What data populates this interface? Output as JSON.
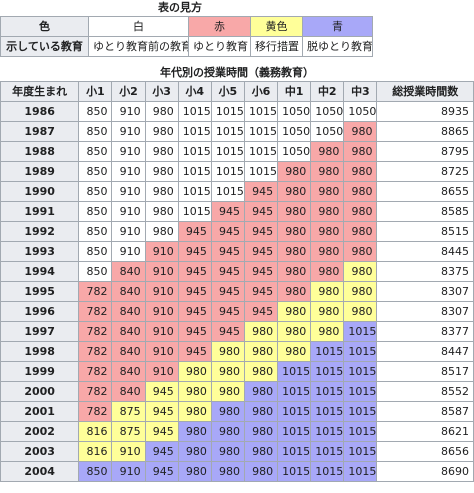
{
  "legend": {
    "caption": "表の見方",
    "rows": [
      [
        "色",
        "白",
        "赤",
        "黄色",
        "青"
      ],
      [
        "示している教育",
        "ゆとり教育前の教育",
        "ゆとり教育",
        "移行措置",
        "脱ゆとり教育"
      ]
    ],
    "colors": [
      "#ffffff",
      "#f8a8a8",
      "#ffff99",
      "#a8a8f8"
    ]
  },
  "table": {
    "caption": "年代別の授業時間（義務教育）",
    "header": [
      "年度生まれ",
      "小1",
      "小2",
      "小3",
      "小4",
      "小5",
      "小6",
      "中1",
      "中2",
      "中3",
      "総授業時間数"
    ],
    "rows": [
      {
        "year": 1986,
        "cells": [
          850,
          910,
          980,
          1015,
          1015,
          1015,
          1050,
          1050,
          1050
        ],
        "total": 8935,
        "colors": [
          "#ffffff",
          "#ffffff",
          "#ffffff",
          "#ffffff",
          "#ffffff",
          "#ffffff",
          "#ffffff",
          "#ffffff",
          "#ffffff"
        ]
      },
      {
        "year": 1987,
        "cells": [
          850,
          910,
          980,
          1015,
          1015,
          1015,
          1050,
          1050,
          980
        ],
        "total": 8865,
        "colors": [
          "#ffffff",
          "#ffffff",
          "#ffffff",
          "#ffffff",
          "#ffffff",
          "#ffffff",
          "#ffffff",
          "#ffffff",
          "#f8a8a8"
        ]
      },
      {
        "year": 1988,
        "cells": [
          850,
          910,
          980,
          1015,
          1015,
          1015,
          1050,
          980,
          980
        ],
        "total": 8795,
        "colors": [
          "#ffffff",
          "#ffffff",
          "#ffffff",
          "#ffffff",
          "#ffffff",
          "#ffffff",
          "#ffffff",
          "#f8a8a8",
          "#f8a8a8"
        ]
      },
      {
        "year": 1989,
        "cells": [
          850,
          910,
          980,
          1015,
          1015,
          1015,
          980,
          980,
          980
        ],
        "total": 8725,
        "colors": [
          "#ffffff",
          "#ffffff",
          "#ffffff",
          "#ffffff",
          "#ffffff",
          "#ffffff",
          "#f8a8a8",
          "#f8a8a8",
          "#f8a8a8"
        ]
      },
      {
        "year": 1990,
        "cells": [
          850,
          910,
          980,
          1015,
          1015,
          945,
          980,
          980,
          980
        ],
        "total": 8655,
        "colors": [
          "#ffffff",
          "#ffffff",
          "#ffffff",
          "#ffffff",
          "#ffffff",
          "#f8a8a8",
          "#f8a8a8",
          "#f8a8a8",
          "#f8a8a8"
        ]
      },
      {
        "year": 1991,
        "cells": [
          850,
          910,
          980,
          1015,
          945,
          945,
          980,
          980,
          980
        ],
        "total": 8585,
        "colors": [
          "#ffffff",
          "#ffffff",
          "#ffffff",
          "#ffffff",
          "#f8a8a8",
          "#f8a8a8",
          "#f8a8a8",
          "#f8a8a8",
          "#f8a8a8"
        ]
      },
      {
        "year": 1992,
        "cells": [
          850,
          910,
          980,
          945,
          945,
          945,
          980,
          980,
          980
        ],
        "total": 8515,
        "colors": [
          "#ffffff",
          "#ffffff",
          "#ffffff",
          "#f8a8a8",
          "#f8a8a8",
          "#f8a8a8",
          "#f8a8a8",
          "#f8a8a8",
          "#f8a8a8"
        ]
      },
      {
        "year": 1993,
        "cells": [
          850,
          910,
          910,
          945,
          945,
          945,
          980,
          980,
          980
        ],
        "total": 8445,
        "colors": [
          "#ffffff",
          "#ffffff",
          "#f8a8a8",
          "#f8a8a8",
          "#f8a8a8",
          "#f8a8a8",
          "#f8a8a8",
          "#f8a8a8",
          "#f8a8a8"
        ]
      },
      {
        "year": 1994,
        "cells": [
          850,
          840,
          910,
          945,
          945,
          945,
          980,
          980,
          980
        ],
        "total": 8375,
        "colors": [
          "#ffffff",
          "#f8a8a8",
          "#f8a8a8",
          "#f8a8a8",
          "#f8a8a8",
          "#f8a8a8",
          "#f8a8a8",
          "#f8a8a8",
          "#ffff99"
        ]
      },
      {
        "year": 1995,
        "cells": [
          782,
          840,
          910,
          945,
          945,
          945,
          980,
          980,
          980
        ],
        "total": 8307,
        "colors": [
          "#f8a8a8",
          "#f8a8a8",
          "#f8a8a8",
          "#f8a8a8",
          "#f8a8a8",
          "#f8a8a8",
          "#f8a8a8",
          "#ffff99",
          "#ffff99"
        ]
      },
      {
        "year": 1996,
        "cells": [
          782,
          840,
          910,
          945,
          945,
          945,
          980,
          980,
          980
        ],
        "total": 8307,
        "colors": [
          "#f8a8a8",
          "#f8a8a8",
          "#f8a8a8",
          "#f8a8a8",
          "#f8a8a8",
          "#f8a8a8",
          "#ffff99",
          "#ffff99",
          "#ffff99"
        ]
      },
      {
        "year": 1997,
        "cells": [
          782,
          840,
          910,
          945,
          945,
          980,
          980,
          980,
          1015
        ],
        "total": 8377,
        "colors": [
          "#f8a8a8",
          "#f8a8a8",
          "#f8a8a8",
          "#f8a8a8",
          "#f8a8a8",
          "#ffff99",
          "#ffff99",
          "#ffff99",
          "#a8a8f8"
        ]
      },
      {
        "year": 1998,
        "cells": [
          782,
          840,
          910,
          945,
          980,
          980,
          980,
          1015,
          1015
        ],
        "total": 8447,
        "colors": [
          "#f8a8a8",
          "#f8a8a8",
          "#f8a8a8",
          "#f8a8a8",
          "#ffff99",
          "#ffff99",
          "#ffff99",
          "#a8a8f8",
          "#a8a8f8"
        ]
      },
      {
        "year": 1999,
        "cells": [
          782,
          840,
          910,
          980,
          980,
          980,
          1015,
          1015,
          1015
        ],
        "total": 8517,
        "colors": [
          "#f8a8a8",
          "#f8a8a8",
          "#f8a8a8",
          "#ffff99",
          "#ffff99",
          "#ffff99",
          "#a8a8f8",
          "#a8a8f8",
          "#a8a8f8"
        ]
      },
      {
        "year": 2000,
        "cells": [
          782,
          840,
          945,
          980,
          980,
          980,
          1015,
          1015,
          1015
        ],
        "total": 8552,
        "colors": [
          "#f8a8a8",
          "#f8a8a8",
          "#ffff99",
          "#ffff99",
          "#ffff99",
          "#a8a8f8",
          "#a8a8f8",
          "#a8a8f8",
          "#a8a8f8"
        ]
      },
      {
        "year": 2001,
        "cells": [
          782,
          875,
          945,
          980,
          980,
          980,
          1015,
          1015,
          1015
        ],
        "total": 8587,
        "colors": [
          "#f8a8a8",
          "#ffff99",
          "#ffff99",
          "#ffff99",
          "#a8a8f8",
          "#a8a8f8",
          "#a8a8f8",
          "#a8a8f8",
          "#a8a8f8"
        ]
      },
      {
        "year": 2002,
        "cells": [
          816,
          875,
          945,
          980,
          980,
          980,
          1015,
          1015,
          1015
        ],
        "total": 8621,
        "colors": [
          "#ffff99",
          "#ffff99",
          "#ffff99",
          "#a8a8f8",
          "#a8a8f8",
          "#a8a8f8",
          "#a8a8f8",
          "#a8a8f8",
          "#a8a8f8"
        ]
      },
      {
        "year": 2003,
        "cells": [
          816,
          910,
          945,
          980,
          980,
          980,
          1015,
          1015,
          1015
        ],
        "total": 8656,
        "colors": [
          "#ffff99",
          "#ffff99",
          "#a8a8f8",
          "#a8a8f8",
          "#a8a8f8",
          "#a8a8f8",
          "#a8a8f8",
          "#a8a8f8",
          "#a8a8f8"
        ]
      },
      {
        "year": 2004,
        "cells": [
          850,
          910,
          945,
          980,
          980,
          980,
          1015,
          1015,
          1015
        ],
        "total": 8690,
        "colors": [
          "#a8a8f8",
          "#a8a8f8",
          "#a8a8f8",
          "#a8a8f8",
          "#a8a8f8",
          "#a8a8f8",
          "#a8a8f8",
          "#a8a8f8",
          "#a8a8f8"
        ]
      }
    ]
  }
}
